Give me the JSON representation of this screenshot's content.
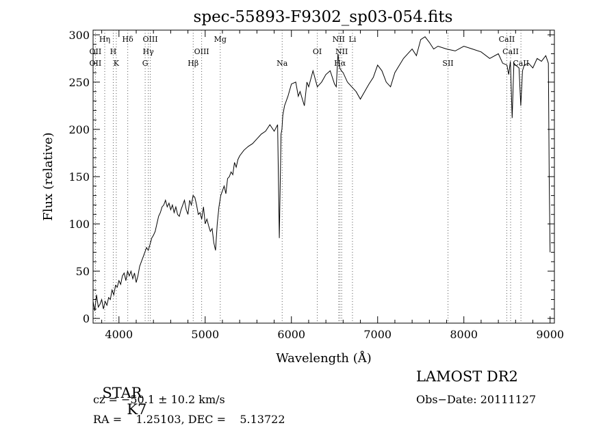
{
  "chart_data": {
    "type": "line",
    "title": "spec-55893-F9302_sp03-054.fits",
    "xlabel": "Wavelength (Å)",
    "ylabel": "Flux (relative)",
    "xlim": [
      3700,
      9050
    ],
    "ylim": [
      -5,
      305
    ],
    "x_ticks": [
      4000,
      5000,
      6000,
      7000,
      8000,
      9000
    ],
    "y_ticks": [
      0,
      50,
      100,
      150,
      200,
      250,
      300
    ],
    "grid": false,
    "line_color": "#000000",
    "series": [
      {
        "x": [
          3700,
          3720,
          3740,
          3760,
          3780,
          3800,
          3820,
          3840,
          3860,
          3880,
          3900,
          3920,
          3940,
          3960,
          3980,
          4000,
          4020,
          4040,
          4060,
          4080,
          4100,
          4120,
          4140,
          4160,
          4180,
          4200,
          4220,
          4240,
          4260,
          4280,
          4300,
          4320,
          4340,
          4360,
          4380,
          4400,
          4420,
          4440,
          4460,
          4480,
          4500,
          4520,
          4540,
          4560,
          4580,
          4600,
          4620,
          4640,
          4660,
          4680,
          4700,
          4720,
          4740,
          4760,
          4780,
          4800,
          4820,
          4840,
          4860,
          4880,
          4900,
          4920,
          4940,
          4960,
          4980,
          5000,
          5020,
          5040,
          5060,
          5080,
          5100,
          5120,
          5140,
          5160,
          5180,
          5200,
          5220,
          5240,
          5260,
          5280,
          5300,
          5320,
          5340,
          5360,
          5380,
          5400,
          5450,
          5500,
          5550,
          5600,
          5650,
          5700,
          5750,
          5800,
          5840,
          5860,
          5880,
          5890,
          5900,
          5920,
          5960,
          6000,
          6050,
          6080,
          6100,
          6150,
          6180,
          6200,
          6250,
          6300,
          6350,
          6400,
          6450,
          6500,
          6520,
          6540,
          6560,
          6580,
          6600,
          6650,
          6700,
          6750,
          6800,
          6850,
          6900,
          6950,
          7000,
          7050,
          7100,
          7150,
          7200,
          7300,
          7400,
          7450,
          7500,
          7550,
          7600,
          7650,
          7700,
          7800,
          7900,
          8000,
          8100,
          8200,
          8300,
          8400,
          8450,
          8500,
          8520,
          8540,
          8560,
          8580,
          8600,
          8640,
          8660,
          8680,
          8700,
          8750,
          8800,
          8850,
          8900,
          8950,
          8980,
          8990,
          9000
        ],
        "y": [
          18,
          8,
          25,
          12,
          15,
          20,
          10,
          18,
          14,
          22,
          20,
          30,
          25,
          35,
          33,
          40,
          36,
          45,
          48,
          40,
          50,
          45,
          50,
          42,
          48,
          38,
          45,
          55,
          60,
          65,
          70,
          75,
          72,
          78,
          85,
          88,
          92,
          100,
          108,
          112,
          118,
          120,
          125,
          118,
          122,
          115,
          120,
          112,
          118,
          110,
          108,
          115,
          120,
          125,
          115,
          110,
          125,
          120,
          130,
          128,
          120,
          110,
          112,
          105,
          118,
          100,
          105,
          98,
          92,
          95,
          80,
          72,
          100,
          118,
          130,
          135,
          140,
          132,
          148,
          150,
          155,
          152,
          165,
          160,
          168,
          172,
          178,
          182,
          185,
          190,
          195,
          198,
          205,
          198,
          205,
          85,
          195,
          200,
          215,
          225,
          235,
          248,
          250,
          235,
          240,
          225,
          250,
          245,
          262,
          245,
          250,
          258,
          262,
          248,
          245,
          280,
          265,
          262,
          260,
          250,
          245,
          240,
          232,
          240,
          248,
          255,
          268,
          262,
          250,
          245,
          260,
          275,
          285,
          278,
          295,
          298,
          292,
          285,
          288,
          285,
          283,
          288,
          285,
          282,
          275,
          280,
          270,
          268,
          258,
          272,
          212,
          270,
          268,
          265,
          225,
          262,
          268,
          270,
          265,
          275,
          272,
          278,
          270,
          150,
          70
        ]
      }
    ],
    "lines": [
      {
        "label": "OII",
        "x": 3727,
        "row": 2
      },
      {
        "label": "OII",
        "x": 3727,
        "row": 3
      },
      {
        "label": "Hη",
        "x": 3835,
        "row": 1
      },
      {
        "label": "H",
        "x": 3934,
        "row": 2
      },
      {
        "label": "K",
        "x": 3969,
        "row": 3
      },
      {
        "label": "Hδ",
        "x": 4102,
        "row": 1
      },
      {
        "label": "OIII",
        "x": 4363,
        "row": 1
      },
      {
        "label": "Hγ",
        "x": 4340,
        "row": 2
      },
      {
        "label": "G",
        "x": 4304,
        "row": 3
      },
      {
        "label": "Hβ",
        "x": 4861,
        "row": 3
      },
      {
        "label": "OIII",
        "x": 4959,
        "row": 2
      },
      {
        "label": "Mg",
        "x": 5175,
        "row": 1
      },
      {
        "label": "Na",
        "x": 5893,
        "row": 3
      },
      {
        "label": "OI",
        "x": 6300,
        "row": 2
      },
      {
        "label": "NII",
        "x": 6548,
        "row": 1
      },
      {
        "label": "NII",
        "x": 6583,
        "row": 2
      },
      {
        "label": "Hα",
        "x": 6563,
        "row": 3
      },
      {
        "label": "Li",
        "x": 6708,
        "row": 1
      },
      {
        "label": "SII",
        "x": 7816,
        "row": 3
      },
      {
        "label": "CaII",
        "x": 8498,
        "row": 1
      },
      {
        "label": "CaII",
        "x": 8542,
        "row": 2
      },
      {
        "label": "CaII",
        "x": 8662,
        "row": 3
      }
    ]
  },
  "info": {
    "class": "STAR",
    "subclass": "K7",
    "survey": "LAMOST DR2",
    "cz": "cz = −50.1 ± 10.2 km/s",
    "obs_date": "Obs−Date: 20111127",
    "coords": "RA =    1.25103, DEC =    5.13722"
  }
}
